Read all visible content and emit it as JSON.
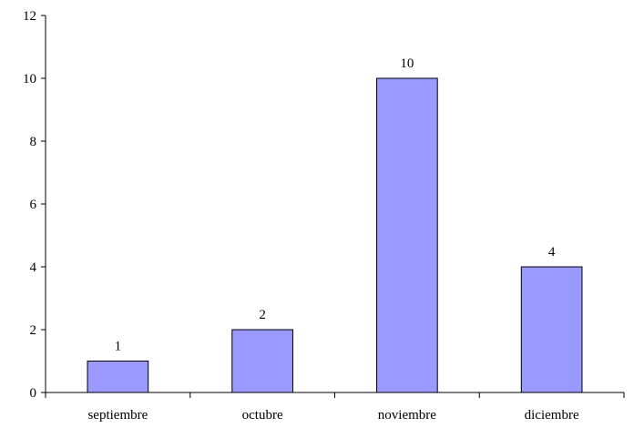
{
  "chart_data": {
    "type": "bar",
    "title": "",
    "xlabel": "",
    "ylabel": "",
    "categories": [
      "septiembre",
      "octubre",
      "noviembre",
      "diciembre"
    ],
    "values": [
      1,
      2,
      10,
      4
    ],
    "data_labels": [
      "1",
      "2",
      "10",
      "4"
    ],
    "ylim": [
      0,
      12
    ],
    "yticks": [
      0,
      2,
      4,
      6,
      8,
      10,
      12
    ],
    "ytick_labels": [
      "0",
      "2",
      "4",
      "6",
      "8",
      "10",
      "12"
    ],
    "grid": false,
    "legend": "none",
    "bar_color": "#9999FF",
    "bar_edge_color": "#000000"
  }
}
